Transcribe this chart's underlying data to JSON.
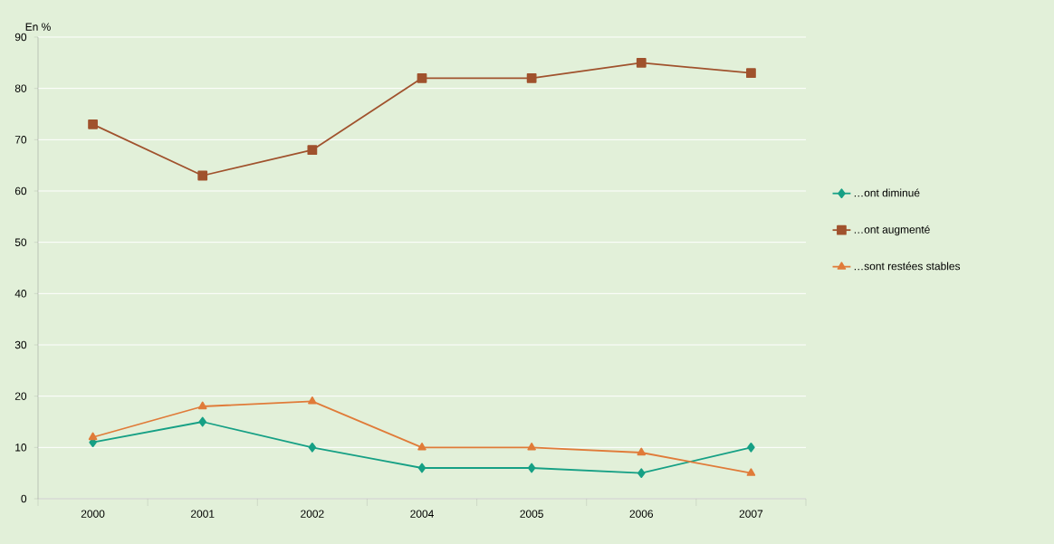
{
  "chart_data": {
    "type": "line",
    "ylabel": "En %",
    "categories": [
      "2000",
      "2001",
      "2002",
      "2004",
      "2005",
      "2006",
      "2007"
    ],
    "series": [
      {
        "name": "…ont diminué",
        "color": "#16a085",
        "marker": "diamond",
        "values": [
          11,
          15,
          10,
          6,
          6,
          5,
          10
        ]
      },
      {
        "name": "…ont augmenté",
        "color": "#a0522d",
        "marker": "square",
        "values": [
          73,
          63,
          68,
          82,
          82,
          85,
          83
        ]
      },
      {
        "name": "…sont restées stables",
        "color": "#e07b39",
        "marker": "triangle",
        "values": [
          12,
          18,
          19,
          10,
          10,
          9,
          5
        ]
      }
    ],
    "ylim": [
      0,
      90
    ],
    "yticks": [
      0,
      10,
      20,
      30,
      40,
      50,
      60,
      70,
      80,
      90
    ],
    "grid": "y",
    "legend": "right",
    "line_style": "solid"
  }
}
